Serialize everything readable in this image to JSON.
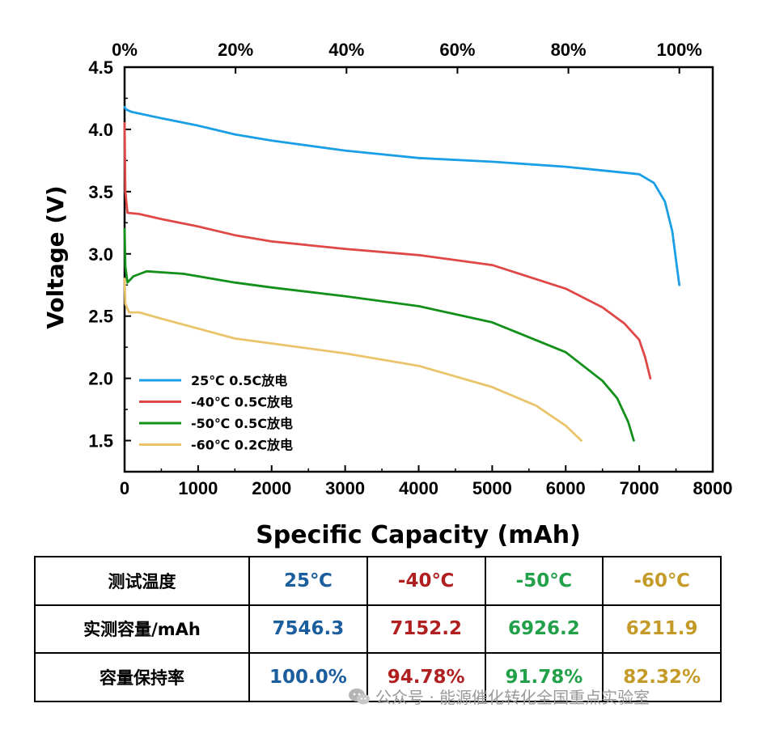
{
  "chart_data": {
    "type": "line",
    "xlabel": "Specific Capacity (mAh)",
    "ylabel": "Voltage (V)",
    "xlim": [
      0,
      8000
    ],
    "ylim": [
      1.25,
      4.5
    ],
    "x_ticks": [
      0,
      1000,
      2000,
      3000,
      4000,
      5000,
      6000,
      7000,
      8000
    ],
    "y_ticks": [
      "1.5",
      "2.0",
      "2.5",
      "3.0",
      "3.5",
      "4.0",
      "4.5"
    ],
    "top_axis_ticks": [
      "0%",
      "20%",
      "40%",
      "60%",
      "80%",
      "100%"
    ],
    "legend_position": "bottom-left",
    "series": [
      {
        "name": "25℃ 0.5C放电",
        "color": "#1a9fe6",
        "x": [
          0,
          20,
          100,
          500,
          1000,
          1500,
          2000,
          3000,
          4000,
          5000,
          6000,
          6500,
          7000,
          7200,
          7350,
          7450,
          7500,
          7546
        ],
        "y": [
          4.18,
          4.16,
          4.14,
          4.09,
          4.03,
          3.96,
          3.91,
          3.83,
          3.77,
          3.74,
          3.7,
          3.67,
          3.64,
          3.57,
          3.42,
          3.18,
          2.95,
          2.75
        ]
      },
      {
        "name": "-40℃ 0.5C放电",
        "color": "#e04848",
        "x": [
          0,
          10,
          40,
          200,
          500,
          1000,
          1500,
          2000,
          3000,
          4000,
          5000,
          6000,
          6500,
          6800,
          7000,
          7080,
          7152
        ],
        "y": [
          4.05,
          3.5,
          3.33,
          3.32,
          3.28,
          3.22,
          3.15,
          3.1,
          3.04,
          2.99,
          2.91,
          2.72,
          2.57,
          2.44,
          2.31,
          2.17,
          2.0
        ]
      },
      {
        "name": "-50℃ 0.5C放电",
        "color": "#12901a",
        "x": [
          0,
          10,
          40,
          120,
          300,
          800,
          1500,
          2000,
          3000,
          4000,
          5000,
          6000,
          6500,
          6700,
          6850,
          6926
        ],
        "y": [
          3.2,
          2.9,
          2.77,
          2.82,
          2.86,
          2.84,
          2.77,
          2.73,
          2.66,
          2.58,
          2.45,
          2.21,
          1.98,
          1.84,
          1.65,
          1.5
        ]
      },
      {
        "name": "-60℃ 0.2C放电",
        "color": "#e9c46a",
        "x": [
          0,
          10,
          60,
          200,
          500,
          1000,
          1500,
          2000,
          3000,
          4000,
          5000,
          5600,
          6000,
          6212
        ],
        "y": [
          2.8,
          2.6,
          2.53,
          2.53,
          2.48,
          2.4,
          2.32,
          2.28,
          2.2,
          2.1,
          1.93,
          1.78,
          1.62,
          1.5
        ]
      }
    ]
  },
  "table": {
    "header": [
      "测试温度",
      "25℃",
      "-40℃",
      "-50℃",
      "-60℃"
    ],
    "rows": [
      [
        "实测容量/mAh",
        "7546.3",
        "7152.2",
        "6926.2",
        "6211.9"
      ],
      [
        "容量保持率",
        "100.0%",
        "94.78%",
        "91.78%",
        "82.32%"
      ]
    ],
    "column_colors": [
      "#000000",
      "#1b5e9e",
      "#b02020",
      "#22a04a",
      "#c49a28"
    ]
  },
  "watermark": {
    "text": "公众号 · 能源催化转化全国重点实验室"
  }
}
